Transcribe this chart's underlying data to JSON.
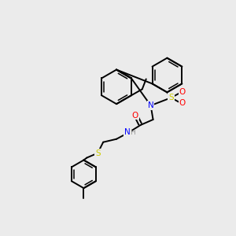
{
  "bg_color": "#ebebeb",
  "bond_color": "#000000",
  "atom_colors": {
    "N": "#0000ff",
    "O": "#ff0000",
    "S_sulfonyl": "#cccc00",
    "S_thioether": "#cccc00",
    "H": "#999999",
    "C": "#000000"
  },
  "figsize": [
    3.0,
    3.0
  ],
  "dpi": 100
}
